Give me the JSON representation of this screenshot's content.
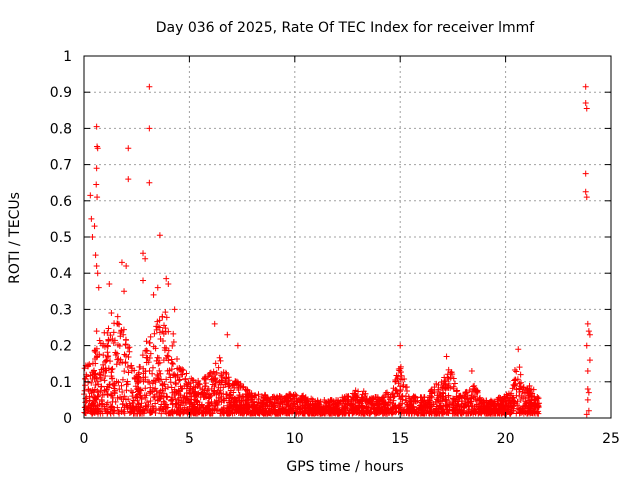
{
  "chart_data": {
    "type": "scatter",
    "title": "Day 036 of 2025, Rate Of TEC Index for receiver lmmf",
    "xlabel": "GPS time / hours",
    "ylabel": "ROTI / TECUs",
    "xlim": [
      0,
      25
    ],
    "ylim": [
      0,
      1
    ],
    "xticks": [
      "0",
      "5",
      "10",
      "15",
      "20",
      "25"
    ],
    "yticks": [
      "0",
      "0.1",
      "0.2",
      "0.3",
      "0.4",
      "0.5",
      "0.6",
      "0.7",
      "0.8",
      "0.9",
      "1"
    ],
    "grid": true,
    "legend": "none",
    "marker": "+",
    "series": [
      {
        "color": "#ff0000",
        "envelope": [
          {
            "x": 0.0,
            "y": 0.14
          },
          {
            "x": 0.3,
            "y": 0.17
          },
          {
            "x": 0.6,
            "y": 0.2
          },
          {
            "x": 1.0,
            "y": 0.24
          },
          {
            "x": 1.5,
            "y": 0.28
          },
          {
            "x": 1.8,
            "y": 0.26
          },
          {
            "x": 2.0,
            "y": 0.24
          },
          {
            "x": 2.5,
            "y": 0.12
          },
          {
            "x": 3.0,
            "y": 0.22
          },
          {
            "x": 3.4,
            "y": 0.27
          },
          {
            "x": 3.8,
            "y": 0.3
          },
          {
            "x": 4.2,
            "y": 0.25
          },
          {
            "x": 4.6,
            "y": 0.14
          },
          {
            "x": 5.0,
            "y": 0.12
          },
          {
            "x": 5.5,
            "y": 0.1
          },
          {
            "x": 6.0,
            "y": 0.13
          },
          {
            "x": 6.4,
            "y": 0.17
          },
          {
            "x": 6.9,
            "y": 0.12
          },
          {
            "x": 7.3,
            "y": 0.1
          },
          {
            "x": 8.0,
            "y": 0.07
          },
          {
            "x": 9.0,
            "y": 0.06
          },
          {
            "x": 10.0,
            "y": 0.07
          },
          {
            "x": 11.0,
            "y": 0.05
          },
          {
            "x": 12.0,
            "y": 0.05
          },
          {
            "x": 13.0,
            "y": 0.08
          },
          {
            "x": 14.0,
            "y": 0.06
          },
          {
            "x": 14.6,
            "y": 0.08
          },
          {
            "x": 15.0,
            "y": 0.15
          },
          {
            "x": 15.5,
            "y": 0.06
          },
          {
            "x": 16.2,
            "y": 0.06
          },
          {
            "x": 17.0,
            "y": 0.12
          },
          {
            "x": 17.4,
            "y": 0.14
          },
          {
            "x": 17.8,
            "y": 0.06
          },
          {
            "x": 18.5,
            "y": 0.09
          },
          {
            "x": 19.0,
            "y": 0.05
          },
          {
            "x": 20.0,
            "y": 0.06
          },
          {
            "x": 20.6,
            "y": 0.16
          },
          {
            "x": 21.0,
            "y": 0.08
          },
          {
            "x": 21.3,
            "y": 0.1
          },
          {
            "x": 21.6,
            "y": 0.05
          }
        ],
        "extra_points": [
          {
            "x": 0.3,
            "y": 0.615
          },
          {
            "x": 0.35,
            "y": 0.55
          },
          {
            "x": 0.4,
            "y": 0.5
          },
          {
            "x": 0.5,
            "y": 0.53
          },
          {
            "x": 0.55,
            "y": 0.45
          },
          {
            "x": 0.6,
            "y": 0.805
          },
          {
            "x": 0.62,
            "y": 0.75
          },
          {
            "x": 0.65,
            "y": 0.745
          },
          {
            "x": 0.6,
            "y": 0.69
          },
          {
            "x": 0.58,
            "y": 0.645
          },
          {
            "x": 0.62,
            "y": 0.61
          },
          {
            "x": 0.6,
            "y": 0.42
          },
          {
            "x": 0.65,
            "y": 0.4
          },
          {
            "x": 0.7,
            "y": 0.36
          },
          {
            "x": 1.2,
            "y": 0.37
          },
          {
            "x": 1.8,
            "y": 0.43
          },
          {
            "x": 2.0,
            "y": 0.42
          },
          {
            "x": 1.9,
            "y": 0.35
          },
          {
            "x": 2.1,
            "y": 0.745
          },
          {
            "x": 2.1,
            "y": 0.66
          },
          {
            "x": 2.8,
            "y": 0.455
          },
          {
            "x": 2.9,
            "y": 0.44
          },
          {
            "x": 3.1,
            "y": 0.915
          },
          {
            "x": 3.1,
            "y": 0.8
          },
          {
            "x": 3.1,
            "y": 0.65
          },
          {
            "x": 3.6,
            "y": 0.505
          },
          {
            "x": 3.9,
            "y": 0.385
          },
          {
            "x": 4.0,
            "y": 0.37
          },
          {
            "x": 4.3,
            "y": 0.3
          },
          {
            "x": 23.8,
            "y": 0.915
          },
          {
            "x": 23.8,
            "y": 0.87
          },
          {
            "x": 23.85,
            "y": 0.855
          },
          {
            "x": 23.8,
            "y": 0.675
          },
          {
            "x": 23.8,
            "y": 0.625
          },
          {
            "x": 23.85,
            "y": 0.61
          },
          {
            "x": 23.9,
            "y": 0.26
          },
          {
            "x": 23.95,
            "y": 0.24
          },
          {
            "x": 24.0,
            "y": 0.23
          },
          {
            "x": 23.85,
            "y": 0.2
          },
          {
            "x": 24.0,
            "y": 0.16
          },
          {
            "x": 23.9,
            "y": 0.13
          },
          {
            "x": 23.9,
            "y": 0.08
          },
          {
            "x": 23.95,
            "y": 0.07
          },
          {
            "x": 23.9,
            "y": 0.05
          },
          {
            "x": 23.95,
            "y": 0.02
          },
          {
            "x": 23.85,
            "y": 0.01
          },
          {
            "x": 0.6,
            "y": 0.24
          },
          {
            "x": 0.9,
            "y": 0.2
          },
          {
            "x": 1.3,
            "y": 0.29
          },
          {
            "x": 1.6,
            "y": 0.28
          },
          {
            "x": 2.8,
            "y": 0.38
          },
          {
            "x": 3.3,
            "y": 0.34
          },
          {
            "x": 3.5,
            "y": 0.36
          },
          {
            "x": 6.2,
            "y": 0.26
          },
          {
            "x": 6.8,
            "y": 0.23
          },
          {
            "x": 7.3,
            "y": 0.2
          },
          {
            "x": 15.0,
            "y": 0.2
          },
          {
            "x": 17.2,
            "y": 0.17
          },
          {
            "x": 18.4,
            "y": 0.13
          },
          {
            "x": 20.6,
            "y": 0.19
          }
        ]
      }
    ]
  }
}
